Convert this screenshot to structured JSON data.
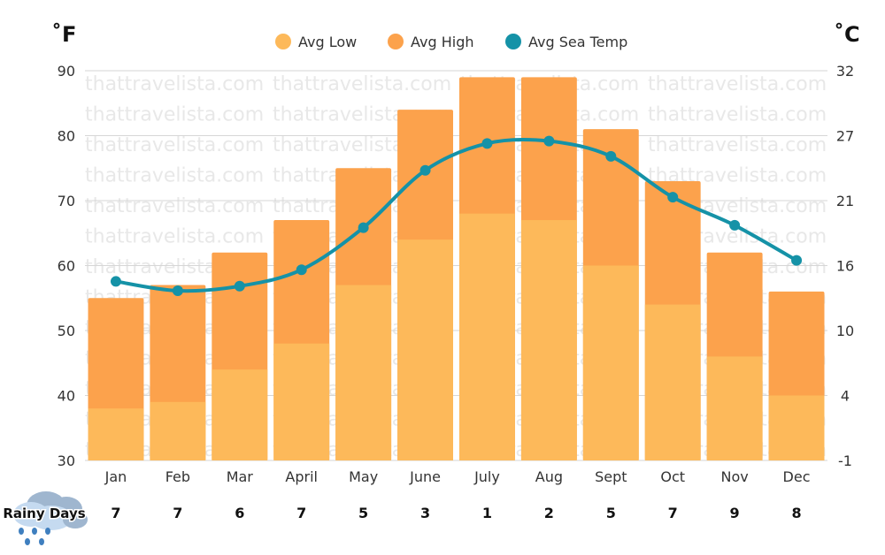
{
  "chart_data": {
    "type": "bar",
    "left_axis_label": "˚F",
    "right_axis_label": "˚C",
    "categories": [
      "Jan",
      "Feb",
      "Mar",
      "April",
      "May",
      "June",
      "July",
      "Aug",
      "Sept",
      "Oct",
      "Nov",
      "Dec"
    ],
    "ylim_f": [
      30,
      90
    ],
    "yticks_f": [
      30,
      40,
      50,
      60,
      70,
      80,
      90
    ],
    "yticks_c": [
      "-1",
      "4",
      "10",
      "16",
      "21",
      "27",
      "32"
    ],
    "grid": true,
    "legend_position": "top",
    "series": [
      {
        "name": "Avg Low",
        "type": "bar",
        "unit": "F",
        "color": "#fdb95a",
        "values": [
          38,
          39,
          44,
          48,
          57,
          64,
          68,
          67,
          60,
          54,
          46,
          40
        ]
      },
      {
        "name": "Avg High",
        "type": "bar",
        "unit": "F",
        "color": "#fca24c",
        "values": [
          55,
          57,
          62,
          67,
          75,
          84,
          89,
          89,
          81,
          73,
          62,
          56
        ]
      },
      {
        "name": "Avg Sea Temp",
        "type": "line",
        "unit": "C",
        "color": "#1592a7",
        "values": [
          14.2,
          13.4,
          13.8,
          15.2,
          18.8,
          23.7,
          26.0,
          26.2,
          24.9,
          21.4,
          19.0,
          16.0
        ]
      }
    ],
    "rainy_days": {
      "label": "Rainy Days",
      "values": [
        7,
        7,
        6,
        7,
        5,
        3,
        1,
        2,
        5,
        7,
        9,
        8
      ]
    },
    "watermark": "thattravelista.com"
  }
}
